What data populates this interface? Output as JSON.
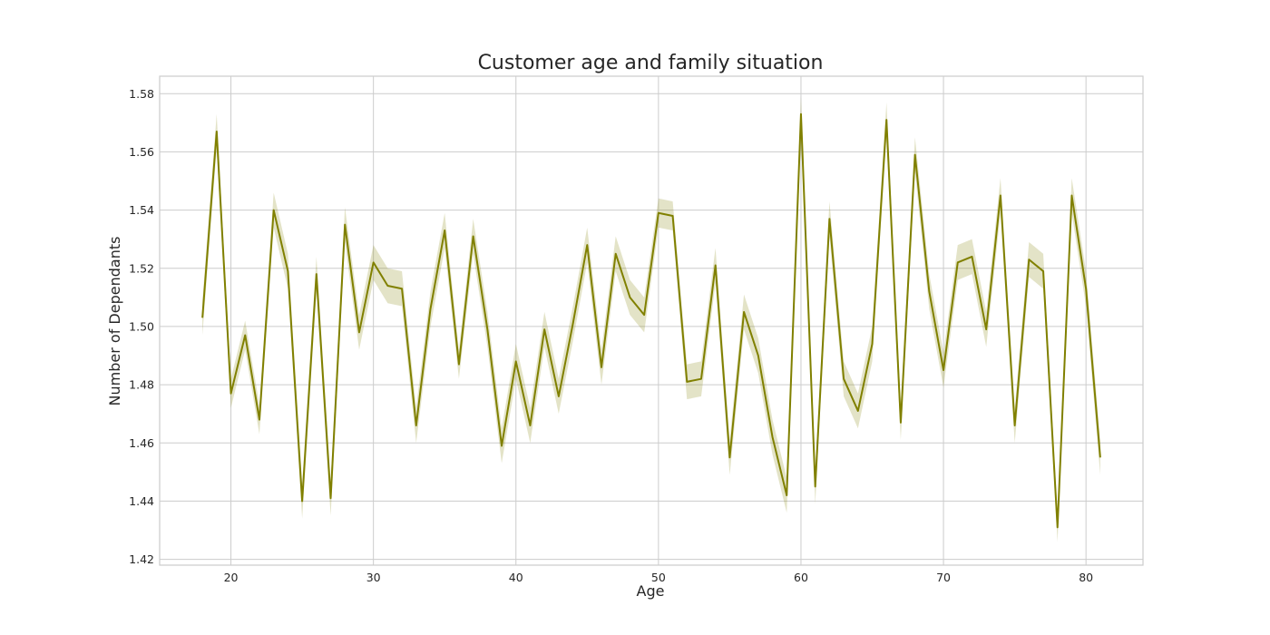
{
  "chart_data": {
    "type": "line",
    "title": "Customer age and family situation",
    "xlabel": "Age",
    "ylabel": "Number of Dependants",
    "xlim": [
      15,
      84
    ],
    "ylim": [
      1.418,
      1.586
    ],
    "xticks": [
      20,
      30,
      40,
      50,
      60,
      70,
      80
    ],
    "yticks": [
      1.42,
      1.44,
      1.46,
      1.48,
      1.5,
      1.52,
      1.54,
      1.56,
      1.58
    ],
    "grid": true,
    "legend": "none",
    "colors": {
      "line": "#808000",
      "band": "#808000",
      "grid": "#cccccc",
      "frame": "#cccccc"
    },
    "series": [
      {
        "x": [
          18,
          19,
          20,
          21,
          22,
          23,
          24,
          25,
          26,
          27,
          28,
          29,
          30,
          31,
          32,
          33,
          34,
          35,
          36,
          37,
          38,
          39,
          40,
          41,
          42,
          43,
          44,
          45,
          46,
          47,
          48,
          49,
          50,
          51,
          52,
          53,
          54,
          55,
          56,
          57,
          58,
          59,
          60,
          61,
          62,
          63,
          64,
          65,
          66,
          67,
          68,
          69,
          70,
          71,
          72,
          73,
          74,
          75,
          76,
          77,
          78,
          79,
          80,
          81
        ],
        "y": [
          1.503,
          1.567,
          1.477,
          1.497,
          1.468,
          1.54,
          1.519,
          1.44,
          1.518,
          1.441,
          1.535,
          1.498,
          1.522,
          1.514,
          1.513,
          1.466,
          1.506,
          1.533,
          1.487,
          1.531,
          1.499,
          1.459,
          1.488,
          1.466,
          1.499,
          1.476,
          1.501,
          1.528,
          1.486,
          1.525,
          1.51,
          1.504,
          1.539,
          1.538,
          1.481,
          1.482,
          1.521,
          1.455,
          1.505,
          1.49,
          1.462,
          1.442,
          1.573,
          1.445,
          1.537,
          1.482,
          1.471,
          1.494,
          1.571,
          1.467,
          1.559,
          1.512,
          1.485,
          1.522,
          1.524,
          1.499,
          1.545,
          1.466,
          1.523,
          1.519,
          1.431,
          1.545,
          1.513,
          1.455
        ],
        "ci_half": [
          0.006,
          0.006,
          0.005,
          0.005,
          0.005,
          0.006,
          0.006,
          0.006,
          0.006,
          0.006,
          0.006,
          0.006,
          0.006,
          0.006,
          0.006,
          0.006,
          0.006,
          0.006,
          0.005,
          0.006,
          0.006,
          0.006,
          0.006,
          0.006,
          0.006,
          0.006,
          0.006,
          0.006,
          0.006,
          0.006,
          0.006,
          0.006,
          0.005,
          0.005,
          0.006,
          0.006,
          0.006,
          0.006,
          0.006,
          0.006,
          0.006,
          0.006,
          0.006,
          0.006,
          0.006,
          0.006,
          0.006,
          0.006,
          0.006,
          0.006,
          0.006,
          0.006,
          0.006,
          0.006,
          0.006,
          0.006,
          0.006,
          0.006,
          0.006,
          0.006,
          0.005,
          0.006,
          0.006,
          0.006
        ]
      }
    ]
  }
}
